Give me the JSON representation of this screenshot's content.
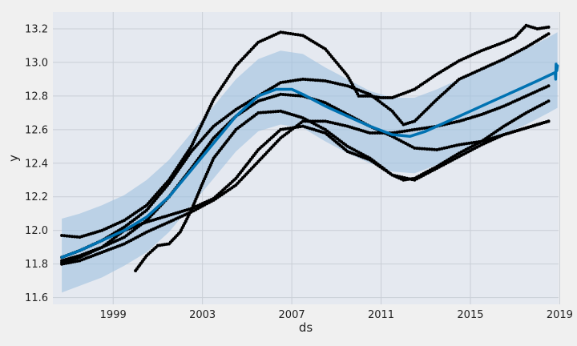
{
  "chart_data": {
    "type": "scatter",
    "title": "",
    "xlabel": "ds",
    "ylabel": "y",
    "xlim": [
      1996.3,
      2018.95
    ],
    "ylim": [
      11.56,
      13.3
    ],
    "xticks": [
      1999,
      2003,
      2007,
      2011,
      2015,
      2019
    ],
    "yticks": [
      11.6,
      11.8,
      12.0,
      12.2,
      12.4,
      12.6,
      12.8,
      13.0,
      13.2
    ],
    "ytick_labels": [
      "11.6",
      "11.8",
      "12.0",
      "12.2",
      "12.4",
      "12.6",
      "12.8",
      "13.0",
      "13.2"
    ],
    "grid": true,
    "colors": {
      "background": "#f0f0f0",
      "plot_background": "#e5e9f0",
      "grid": "#c9ced6",
      "observations": "#000000",
      "forecast": "#0072b2",
      "uncertainty": "#9fc2e0"
    },
    "observed_series": [
      {
        "points": [
          [
            1996.7,
            11.97
          ],
          [
            1997.5,
            11.96
          ],
          [
            1998.5,
            12.0
          ],
          [
            1999.5,
            12.06
          ],
          [
            2000.5,
            12.15
          ],
          [
            2001.5,
            12.3
          ],
          [
            2002.5,
            12.5
          ],
          [
            2003.5,
            12.78
          ],
          [
            2004.5,
            12.98
          ],
          [
            2005.5,
            13.12
          ],
          [
            2006.5,
            13.18
          ],
          [
            2007.5,
            13.16
          ],
          [
            2008.5,
            13.08
          ],
          [
            2009.5,
            12.92
          ],
          [
            2010.0,
            12.8
          ],
          [
            2010.5,
            12.8
          ],
          [
            2011.0,
            12.79
          ],
          [
            2011.5,
            12.79
          ],
          [
            2012.5,
            12.84
          ],
          [
            2013.5,
            12.93
          ],
          [
            2014.5,
            13.01
          ],
          [
            2015.5,
            13.07
          ],
          [
            2016.5,
            13.12
          ],
          [
            2017.0,
            13.15
          ],
          [
            2017.5,
            13.22
          ],
          [
            2018.0,
            13.2
          ],
          [
            2018.5,
            13.21
          ]
        ]
      },
      {
        "points": [
          [
            1996.7,
            11.84
          ],
          [
            1997.5,
            11.88
          ],
          [
            1998.5,
            11.94
          ],
          [
            1999.5,
            12.02
          ],
          [
            2000.5,
            12.12
          ],
          [
            2001.5,
            12.28
          ],
          [
            2002.5,
            12.47
          ],
          [
            2003.5,
            12.62
          ],
          [
            2004.5,
            12.72
          ],
          [
            2005.5,
            12.8
          ],
          [
            2006.5,
            12.88
          ],
          [
            2007.5,
            12.9
          ],
          [
            2008.5,
            12.89
          ],
          [
            2009.5,
            12.86
          ],
          [
            2010.5,
            12.81
          ],
          [
            2011.5,
            12.71
          ],
          [
            2012.0,
            12.63
          ],
          [
            2012.5,
            12.65
          ],
          [
            2013.5,
            12.78
          ],
          [
            2014.5,
            12.9
          ],
          [
            2015.5,
            12.96
          ],
          [
            2016.5,
            13.02
          ],
          [
            2017.5,
            13.09
          ],
          [
            2018.5,
            13.17
          ]
        ]
      },
      {
        "points": [
          [
            1996.7,
            11.82
          ],
          [
            1997.5,
            11.85
          ],
          [
            1998.5,
            11.9
          ],
          [
            1999.5,
            11.96
          ],
          [
            2000.5,
            12.06
          ],
          [
            2001.5,
            12.2
          ],
          [
            2002.5,
            12.37
          ],
          [
            2003.5,
            12.55
          ],
          [
            2004.5,
            12.68
          ],
          [
            2005.5,
            12.77
          ],
          [
            2006.5,
            12.81
          ],
          [
            2007.5,
            12.8
          ],
          [
            2008.5,
            12.76
          ],
          [
            2009.5,
            12.69
          ],
          [
            2010.5,
            12.62
          ],
          [
            2011.5,
            12.56
          ],
          [
            2012.5,
            12.49
          ],
          [
            2013.5,
            12.48
          ],
          [
            2014.5,
            12.51
          ],
          [
            2015.5,
            12.53
          ],
          [
            2016.5,
            12.57
          ],
          [
            2017.5,
            12.61
          ],
          [
            2018.5,
            12.65
          ]
        ]
      },
      {
        "points": [
          [
            1996.7,
            11.8
          ],
          [
            1997.5,
            11.82
          ],
          [
            1998.5,
            11.87
          ],
          [
            1999.5,
            11.92
          ],
          [
            2000.5,
            11.99
          ],
          [
            2001.5,
            12.05
          ],
          [
            2002.5,
            12.11
          ],
          [
            2003.5,
            12.18
          ],
          [
            2004.5,
            12.27
          ],
          [
            2005.5,
            12.41
          ],
          [
            2006.5,
            12.55
          ],
          [
            2007.5,
            12.65
          ],
          [
            2008.5,
            12.65
          ],
          [
            2009.5,
            12.62
          ],
          [
            2010.5,
            12.58
          ],
          [
            2011.5,
            12.58
          ],
          [
            2012.5,
            12.6
          ],
          [
            2013.5,
            12.62
          ],
          [
            2014.5,
            12.65
          ],
          [
            2015.5,
            12.69
          ],
          [
            2016.5,
            12.74
          ],
          [
            2017.5,
            12.8
          ],
          [
            2018.5,
            12.86
          ]
        ]
      },
      {
        "points": [
          [
            2000.0,
            11.76
          ],
          [
            2000.5,
            11.85
          ],
          [
            2001.0,
            11.91
          ],
          [
            2001.5,
            11.92
          ],
          [
            2002.0,
            11.99
          ],
          [
            2002.5,
            12.12
          ],
          [
            2003.0,
            12.28
          ],
          [
            2003.5,
            12.43
          ],
          [
            2004.5,
            12.6
          ],
          [
            2005.5,
            12.7
          ],
          [
            2006.5,
            12.71
          ],
          [
            2007.5,
            12.67
          ],
          [
            2008.5,
            12.6
          ],
          [
            2009.5,
            12.5
          ],
          [
            2010.5,
            12.43
          ],
          [
            2011.5,
            12.33
          ],
          [
            2012.0,
            12.3
          ],
          [
            2012.5,
            12.31
          ],
          [
            2013.5,
            12.38
          ],
          [
            2014.5,
            12.46
          ],
          [
            2015.5,
            12.53
          ],
          [
            2016.5,
            12.62
          ],
          [
            2017.5,
            12.7
          ],
          [
            2018.5,
            12.77
          ]
        ]
      },
      {
        "points": [
          [
            1996.7,
            11.81
          ],
          [
            1997.5,
            11.84
          ],
          [
            1998.5,
            11.9
          ],
          [
            1999.5,
            12.0
          ],
          [
            2000.5,
            12.05
          ],
          [
            2001.5,
            12.09
          ],
          [
            2002.5,
            12.13
          ],
          [
            2003.5,
            12.19
          ],
          [
            2004.5,
            12.31
          ],
          [
            2005.5,
            12.48
          ],
          [
            2006.5,
            12.6
          ],
          [
            2007.5,
            12.62
          ],
          [
            2008.5,
            12.58
          ],
          [
            2009.5,
            12.47
          ],
          [
            2010.5,
            12.42
          ],
          [
            2011.5,
            12.33
          ],
          [
            2012.5,
            12.3
          ],
          [
            2013.5,
            12.37
          ],
          [
            2014.5,
            12.44
          ],
          [
            2015.5,
            12.51
          ],
          [
            2016.5,
            12.57
          ],
          [
            2017.5,
            12.61
          ],
          [
            2018.5,
            12.65
          ]
        ]
      }
    ],
    "forecast_line": [
      [
        1996.7,
        11.84
      ],
      [
        1997.5,
        11.88
      ],
      [
        1998.5,
        11.94
      ],
      [
        1999.5,
        12.0
      ],
      [
        2000.5,
        12.08
      ],
      [
        2001.5,
        12.2
      ],
      [
        2002.5,
        12.36
      ],
      [
        2003.5,
        12.52
      ],
      [
        2004.5,
        12.68
      ],
      [
        2005.5,
        12.8
      ],
      [
        2006.3,
        12.84
      ],
      [
        2007.0,
        12.84
      ],
      [
        2007.5,
        12.81
      ],
      [
        2008.5,
        12.74
      ],
      [
        2009.5,
        12.68
      ],
      [
        2010.5,
        12.62
      ],
      [
        2011.5,
        12.57
      ],
      [
        2012.3,
        12.56
      ],
      [
        2013.0,
        12.59
      ],
      [
        2014.0,
        12.65
      ],
      [
        2015.0,
        12.71
      ],
      [
        2016.0,
        12.77
      ],
      [
        2017.0,
        12.83
      ],
      [
        2018.0,
        12.89
      ],
      [
        2018.8,
        12.94
      ]
    ],
    "forecast_end": [
      [
        2018.8,
        12.94
      ],
      [
        2018.82,
        12.9
      ],
      [
        2018.84,
        12.99
      ],
      [
        2018.87,
        12.95
      ],
      [
        2018.9,
        12.98
      ]
    ],
    "uncertainty_upper": [
      [
        1996.7,
        12.07
      ],
      [
        1997.5,
        12.1
      ],
      [
        1998.5,
        12.15
      ],
      [
        1999.5,
        12.21
      ],
      [
        2000.5,
        12.3
      ],
      [
        2001.5,
        12.42
      ],
      [
        2002.5,
        12.58
      ],
      [
        2003.5,
        12.74
      ],
      [
        2004.5,
        12.9
      ],
      [
        2005.5,
        13.02
      ],
      [
        2006.5,
        13.07
      ],
      [
        2007.5,
        13.05
      ],
      [
        2008.5,
        12.97
      ],
      [
        2009.5,
        12.9
      ],
      [
        2010.5,
        12.83
      ],
      [
        2011.5,
        12.79
      ],
      [
        2012.5,
        12.79
      ],
      [
        2013.5,
        12.84
      ],
      [
        2014.5,
        12.9
      ],
      [
        2015.5,
        12.96
      ],
      [
        2016.5,
        13.02
      ],
      [
        2017.5,
        13.08
      ],
      [
        2018.5,
        13.15
      ],
      [
        2018.9,
        13.18
      ]
    ],
    "uncertainty_lower": [
      [
        1996.7,
        11.63
      ],
      [
        1997.5,
        11.67
      ],
      [
        1998.5,
        11.72
      ],
      [
        1999.5,
        11.79
      ],
      [
        2000.5,
        11.87
      ],
      [
        2001.5,
        11.99
      ],
      [
        2002.5,
        12.15
      ],
      [
        2003.5,
        12.31
      ],
      [
        2004.5,
        12.47
      ],
      [
        2005.5,
        12.59
      ],
      [
        2006.5,
        12.63
      ],
      [
        2007.5,
        12.61
      ],
      [
        2008.5,
        12.53
      ],
      [
        2009.5,
        12.46
      ],
      [
        2010.5,
        12.4
      ],
      [
        2011.5,
        12.35
      ],
      [
        2012.5,
        12.34
      ],
      [
        2013.5,
        12.39
      ],
      [
        2014.5,
        12.45
      ],
      [
        2015.5,
        12.51
      ],
      [
        2016.5,
        12.57
      ],
      [
        2017.5,
        12.63
      ],
      [
        2018.5,
        12.7
      ],
      [
        2018.9,
        12.73
      ]
    ]
  }
}
